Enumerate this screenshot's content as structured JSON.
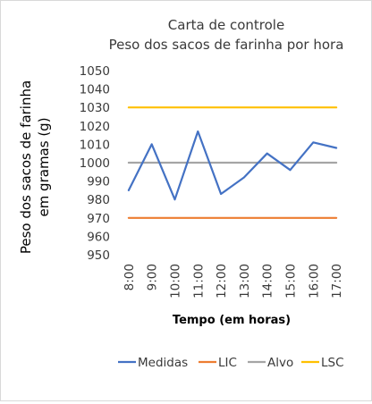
{
  "chart_data": {
    "type": "line",
    "title": "Carta de controle",
    "subtitle": "Peso dos sacos de farinha por hora",
    "xlabel": "Tempo (em horas)",
    "ylabel_line1": "Peso dos sacos de farinha",
    "ylabel_line2": "em gramas (g)",
    "categories": [
      "8:00",
      "9:00",
      "10:00",
      "11:00",
      "12:00",
      "13:00",
      "14:00",
      "15:00",
      "16:00",
      "17:00"
    ],
    "ylim": [
      950,
      1050
    ],
    "yticks": [
      "950",
      "960",
      "970",
      "980",
      "990",
      "1000",
      "1010",
      "1020",
      "1030",
      "1040",
      "1050"
    ],
    "grid": false,
    "legend_position": "bottom",
    "series": [
      {
        "name": "Medidas",
        "color": "#4472c4",
        "values": [
          985,
          1010,
          980,
          1017,
          983,
          992,
          1005,
          996,
          1011,
          1008
        ]
      },
      {
        "name": "LIC",
        "color": "#ed7d31",
        "values": [
          970,
          970,
          970,
          970,
          970,
          970,
          970,
          970,
          970,
          970
        ]
      },
      {
        "name": "Alvo",
        "color": "#a5a5a5",
        "values": [
          1000,
          1000,
          1000,
          1000,
          1000,
          1000,
          1000,
          1000,
          1000,
          1000
        ]
      },
      {
        "name": "LSC",
        "color": "#ffc000",
        "values": [
          1030,
          1030,
          1030,
          1030,
          1030,
          1030,
          1030,
          1030,
          1030,
          1030
        ]
      }
    ]
  }
}
